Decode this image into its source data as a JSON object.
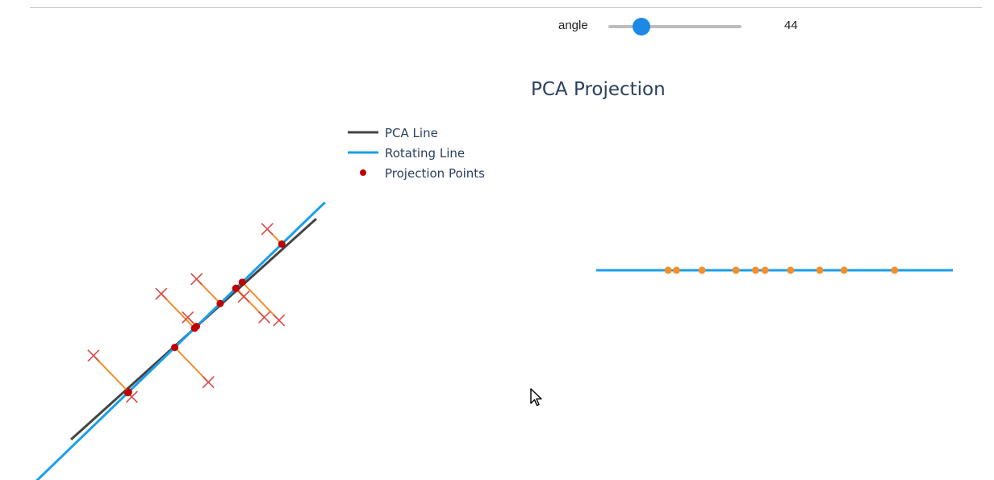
{
  "slider": {
    "label": "angle",
    "value": "44",
    "min": 0,
    "max": 180,
    "current": 44
  },
  "chart_data": [
    {
      "type": "scatter",
      "title": "",
      "legend": {
        "placement": "top-right",
        "entries": [
          {
            "name": "PCA Line",
            "color": "#444444"
          },
          {
            "name": "Rotating Line",
            "color": "#1a9fe8"
          },
          {
            "name": "Projection Points",
            "color": "#c00000"
          }
        ]
      },
      "xlim": [
        -3,
        3
      ],
      "ylim": [
        -3,
        3
      ],
      "grid": false,
      "pca_line": {
        "angle_deg": 42,
        "t_range": [
          -2.8,
          2.8
        ]
      },
      "rotating_line": {
        "angle_deg": 44,
        "t_range": [
          -3.75,
          3.1
        ]
      },
      "data_points": [
        {
          "x": -1.7,
          "y": -0.45
        },
        {
          "x": -0.55,
          "y": 0.6
        },
        {
          "x": -0.1,
          "y": 0.2
        },
        {
          "x": 0.05,
          "y": 0.85
        },
        {
          "x": 0.85,
          "y": 0.55
        },
        {
          "x": 1.25,
          "y": 1.7
        },
        {
          "x": 1.45,
          "y": 0.15
        },
        {
          "x": -1.05,
          "y": -1.15
        },
        {
          "x": 0.25,
          "y": -0.9
        },
        {
          "x": 1.2,
          "y": 0.2
        }
      ]
    },
    {
      "type": "scatter",
      "title": "PCA Projection",
      "line_color": "#1a9fe8",
      "point_color": "#f28e2b",
      "xlim": [
        -2.9,
        3.1
      ],
      "projection_values": [
        -1.69,
        -1.55,
        -1.12,
        -0.55,
        -0.22,
        -0.06,
        0.37,
        0.86,
        1.27,
        2.12
      ]
    }
  ]
}
